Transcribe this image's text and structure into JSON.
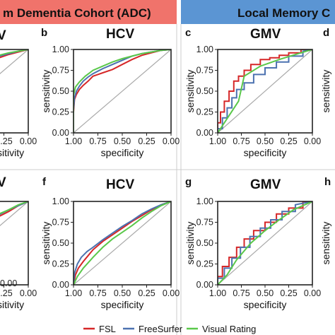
{
  "headers": {
    "left": "m Dementia Cohort (ADC)",
    "right": "Local Memory C"
  },
  "colors": {
    "header_left_bg": "#f0736b",
    "header_right_bg": "#5b95d3",
    "fsl": "#d62728",
    "freesurfer": "#4c72b0",
    "visual_rating": "#5ac84a",
    "diagonal": "#aaaaaa",
    "panel_border": "#cccccc"
  },
  "legend": {
    "items": [
      {
        "label": "FSL",
        "color": "#d62728"
      },
      {
        "label": "FreeSurfer",
        "color": "#4c72b0"
      },
      {
        "label": "Visual Rating",
        "color": "#5ac84a"
      }
    ]
  },
  "axes": {
    "x_label": "specificity",
    "y_label": "sensitivity",
    "x_ticks": [
      "1.00",
      "0.75",
      "0.50",
      "0.25",
      "0.00"
    ],
    "y_ticks": [
      "0.00",
      "0.25",
      "0.50",
      "0.75",
      "1.00"
    ],
    "x_partial_label": "sitivity",
    "y_partial_tick": "0.00"
  },
  "panels": {
    "a_title": "V",
    "b_letter": "b",
    "b_title": "HCV",
    "c_letter": "c",
    "c_title": "GMV",
    "d_letter": "d",
    "e_title": "V",
    "f_letter": "f",
    "f_title": "HCV",
    "g_letter": "g",
    "g_title": "GMV",
    "h_letter": "h"
  },
  "chart_data": [
    {
      "panel": "b",
      "type": "line",
      "title": "HCV",
      "xlabel": "specificity",
      "ylabel": "sensitivity",
      "xlim": [
        1.0,
        0.0
      ],
      "ylim": [
        0.0,
        1.0
      ],
      "series": [
        {
          "name": "FSL",
          "x": [
            1.0,
            1.0,
            0.99,
            0.97,
            0.94,
            0.9,
            0.85,
            0.8,
            0.75,
            0.7,
            0.6,
            0.5,
            0.4,
            0.3,
            0.2,
            0.1,
            0.0
          ],
          "y": [
            0.0,
            0.25,
            0.4,
            0.46,
            0.52,
            0.57,
            0.62,
            0.68,
            0.7,
            0.72,
            0.76,
            0.82,
            0.88,
            0.93,
            0.96,
            0.99,
            1.0
          ]
        },
        {
          "name": "FreeSurfer",
          "x": [
            1.0,
            1.0,
            0.99,
            0.97,
            0.94,
            0.9,
            0.85,
            0.8,
            0.75,
            0.7,
            0.6,
            0.5,
            0.4,
            0.3,
            0.2,
            0.1,
            0.0
          ],
          "y": [
            0.0,
            0.28,
            0.42,
            0.5,
            0.56,
            0.62,
            0.67,
            0.71,
            0.74,
            0.77,
            0.82,
            0.87,
            0.92,
            0.95,
            0.97,
            0.99,
            1.0
          ]
        },
        {
          "name": "Visual Rating",
          "x": [
            1.0,
            1.0,
            0.98,
            0.94,
            0.88,
            0.8,
            0.7,
            0.6,
            0.5,
            0.4,
            0.3,
            0.2,
            0.1,
            0.0
          ],
          "y": [
            0.0,
            0.45,
            0.55,
            0.61,
            0.68,
            0.75,
            0.8,
            0.85,
            0.89,
            0.92,
            0.95,
            0.97,
            0.99,
            1.0
          ]
        }
      ]
    },
    {
      "panel": "c",
      "type": "line",
      "title": "GMV",
      "xlabel": "specificity",
      "ylabel": "sensitivity",
      "xlim": [
        1.0,
        0.0
      ],
      "ylim": [
        0.0,
        1.0
      ],
      "series": [
        {
          "name": "FSL",
          "x": [
            1.0,
            1.0,
            0.97,
            0.97,
            0.93,
            0.93,
            0.88,
            0.88,
            0.83,
            0.83,
            0.78,
            0.78,
            0.72,
            0.72,
            0.65,
            0.65,
            0.55,
            0.55,
            0.45,
            0.45,
            0.35,
            0.35,
            0.25,
            0.25,
            0.12,
            0.12,
            0.0
          ],
          "y": [
            0.0,
            0.12,
            0.12,
            0.25,
            0.25,
            0.38,
            0.38,
            0.5,
            0.5,
            0.62,
            0.62,
            0.68,
            0.68,
            0.75,
            0.75,
            0.82,
            0.82,
            0.88,
            0.88,
            0.9,
            0.9,
            0.93,
            0.93,
            0.96,
            0.96,
            1.0,
            1.0
          ]
        },
        {
          "name": "FreeSurfer",
          "x": [
            1.0,
            1.0,
            0.95,
            0.95,
            0.9,
            0.9,
            0.85,
            0.85,
            0.8,
            0.8,
            0.72,
            0.72,
            0.62,
            0.62,
            0.5,
            0.5,
            0.38,
            0.38,
            0.25,
            0.25,
            0.1,
            0.1,
            0.0
          ],
          "y": [
            0.0,
            0.05,
            0.05,
            0.18,
            0.18,
            0.3,
            0.3,
            0.42,
            0.42,
            0.52,
            0.52,
            0.6,
            0.6,
            0.7,
            0.7,
            0.78,
            0.78,
            0.85,
            0.85,
            0.92,
            0.92,
            0.98,
            1.0
          ]
        },
        {
          "name": "Visual Rating",
          "x": [
            1.0,
            0.93,
            0.78,
            0.72,
            0.55,
            0.35,
            0.15,
            0.0
          ],
          "y": [
            0.0,
            0.12,
            0.38,
            0.68,
            0.8,
            0.88,
            0.95,
            1.0
          ]
        }
      ]
    },
    {
      "panel": "f",
      "type": "line",
      "title": "HCV",
      "xlabel": "specificity",
      "ylabel": "sensitivity",
      "xlim": [
        1.0,
        0.0
      ],
      "ylim": [
        0.0,
        1.0
      ],
      "series": [
        {
          "name": "FSL",
          "x": [
            1.0,
            0.98,
            0.95,
            0.9,
            0.85,
            0.8,
            0.7,
            0.6,
            0.5,
            0.4,
            0.3,
            0.2,
            0.1,
            0.0
          ],
          "y": [
            0.0,
            0.12,
            0.2,
            0.28,
            0.35,
            0.42,
            0.52,
            0.6,
            0.68,
            0.76,
            0.83,
            0.9,
            0.96,
            1.0
          ]
        },
        {
          "name": "FreeSurfer",
          "x": [
            1.0,
            0.99,
            0.96,
            0.92,
            0.86,
            0.8,
            0.7,
            0.6,
            0.5,
            0.4,
            0.3,
            0.2,
            0.1,
            0.0
          ],
          "y": [
            0.0,
            0.14,
            0.25,
            0.33,
            0.4,
            0.45,
            0.54,
            0.62,
            0.7,
            0.77,
            0.85,
            0.91,
            0.96,
            1.0
          ]
        },
        {
          "name": "Visual Rating",
          "x": [
            1.0,
            0.96,
            0.9,
            0.8,
            0.7,
            0.6,
            0.5,
            0.4,
            0.3,
            0.2,
            0.1,
            0.0
          ],
          "y": [
            0.0,
            0.1,
            0.2,
            0.33,
            0.45,
            0.55,
            0.63,
            0.71,
            0.8,
            0.88,
            0.95,
            1.0
          ]
        }
      ]
    },
    {
      "panel": "g",
      "type": "line",
      "title": "GMV",
      "xlabel": "specificity",
      "ylabel": "sensitivity",
      "xlim": [
        1.0,
        0.0
      ],
      "ylim": [
        0.0,
        1.0
      ],
      "series": [
        {
          "name": "FSL",
          "x": [
            1.0,
            1.0,
            0.95,
            0.95,
            0.88,
            0.88,
            0.8,
            0.8,
            0.72,
            0.72,
            0.62,
            0.62,
            0.5,
            0.5,
            0.38,
            0.38,
            0.25,
            0.25,
            0.1,
            0.1,
            0.0
          ],
          "y": [
            0.0,
            0.1,
            0.1,
            0.22,
            0.22,
            0.33,
            0.33,
            0.45,
            0.45,
            0.55,
            0.55,
            0.65,
            0.65,
            0.75,
            0.75,
            0.85,
            0.85,
            0.92,
            0.92,
            1.0,
            1.0
          ]
        },
        {
          "name": "FreeSurfer",
          "x": [
            1.0,
            1.0,
            0.93,
            0.93,
            0.85,
            0.85,
            0.76,
            0.76,
            0.66,
            0.66,
            0.55,
            0.55,
            0.44,
            0.44,
            0.32,
            0.32,
            0.18,
            0.18,
            0.0
          ],
          "y": [
            0.0,
            0.08,
            0.08,
            0.2,
            0.2,
            0.32,
            0.32,
            0.45,
            0.45,
            0.58,
            0.58,
            0.68,
            0.68,
            0.78,
            0.78,
            0.88,
            0.88,
            0.96,
            1.0
          ]
        },
        {
          "name": "Visual Rating",
          "x": [
            1.0,
            0.9,
            0.8,
            0.65,
            0.5,
            0.35,
            0.2,
            0.0
          ],
          "y": [
            0.0,
            0.12,
            0.3,
            0.5,
            0.65,
            0.78,
            0.9,
            1.0
          ]
        }
      ]
    },
    {
      "panel": "a",
      "type": "line",
      "title": "V",
      "xlim": [
        1.0,
        0.0
      ],
      "ylim": [
        0.0,
        1.0
      ],
      "series": [
        {
          "name": "FSL",
          "x": [
            0.3,
            0.2,
            0.1,
            0.0
          ],
          "y": [
            0.9,
            0.94,
            0.97,
            1.0
          ]
        },
        {
          "name": "FreeSurfer",
          "x": [
            0.3,
            0.2,
            0.1,
            0.0
          ],
          "y": [
            0.92,
            0.95,
            0.98,
            1.0
          ]
        },
        {
          "name": "Visual Rating",
          "x": [
            0.3,
            0.2,
            0.1,
            0.0
          ],
          "y": [
            0.93,
            0.96,
            0.98,
            1.0
          ]
        }
      ]
    },
    {
      "panel": "e",
      "type": "line",
      "title": "V",
      "xlim": [
        1.0,
        0.0
      ],
      "ylim": [
        0.0,
        1.0
      ],
      "series": [
        {
          "name": "FSL",
          "x": [
            0.3,
            0.2,
            0.1,
            0.0
          ],
          "y": [
            0.82,
            0.88,
            0.95,
            1.0
          ]
        },
        {
          "name": "FreeSurfer",
          "x": [
            0.3,
            0.2,
            0.1,
            0.0
          ],
          "y": [
            0.84,
            0.9,
            0.95,
            1.0
          ]
        },
        {
          "name": "Visual Rating",
          "x": [
            0.3,
            0.2,
            0.1,
            0.0
          ],
          "y": [
            0.85,
            0.9,
            0.96,
            1.0
          ]
        }
      ]
    }
  ]
}
